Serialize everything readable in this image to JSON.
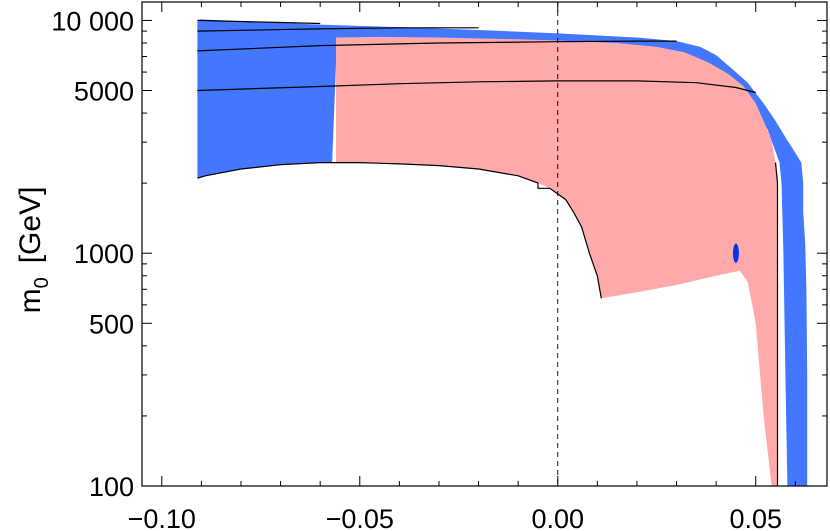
{
  "chart_data": {
    "type": "area",
    "xlabel": "",
    "ylabel_main": "m",
    "ylabel_sub": "0",
    "ylabel_unit": "[GeV]",
    "xscale": "linear",
    "yscale": "log",
    "xlim": [
      -0.105,
      0.068
    ],
    "ylim": [
      100,
      12000
    ],
    "x_ticks": [
      {
        "value": -0.1,
        "label": "−0.10"
      },
      {
        "value": -0.05,
        "label": "−0.05"
      },
      {
        "value": 0.0,
        "label": "0.00"
      },
      {
        "value": 0.05,
        "label": "0.05"
      }
    ],
    "y_ticks": [
      {
        "value": 100,
        "label": "100"
      },
      {
        "value": 500,
        "label": "500"
      },
      {
        "value": 1000,
        "label": "1000"
      },
      {
        "value": 5000,
        "label": "5000"
      },
      {
        "value": 10000,
        "label": "10 000"
      }
    ],
    "y_minor_ticks": [
      200,
      300,
      400,
      600,
      700,
      800,
      900,
      2000,
      3000,
      4000,
      6000,
      7000,
      8000,
      9000
    ],
    "x_minor_step": 0.01,
    "reference_line": {
      "x": 0.0,
      "style": "dashed"
    },
    "regions": [
      {
        "color": "#4477ff",
        "points": [
          [
            -0.091,
            10050
          ],
          [
            -0.09,
            10100
          ],
          [
            -0.08,
            9900
          ],
          [
            -0.06,
            9600
          ],
          [
            -0.04,
            9350
          ],
          [
            -0.02,
            9100
          ],
          [
            0.0,
            8800
          ],
          [
            0.02,
            8450
          ],
          [
            0.03,
            8150
          ],
          [
            0.036,
            7700
          ],
          [
            0.04,
            7100
          ],
          [
            0.044,
            6200
          ],
          [
            0.048,
            5400
          ],
          [
            0.052,
            4400
          ],
          [
            0.055,
            3700
          ],
          [
            0.058,
            3050
          ],
          [
            0.06,
            2700
          ],
          [
            0.0615,
            2450
          ],
          [
            0.062,
            2000
          ],
          [
            0.062,
            1500
          ],
          [
            0.0625,
            1100
          ],
          [
            0.0628,
            700
          ],
          [
            0.063,
            300
          ],
          [
            0.063,
            100
          ],
          [
            0.058,
            100
          ],
          [
            0.0575,
            300
          ],
          [
            0.057,
            1000
          ],
          [
            0.0565,
            2000
          ],
          [
            0.056,
            2450
          ],
          [
            0.053,
            3400
          ],
          [
            0.05,
            4100
          ],
          [
            0.047,
            4700
          ],
          [
            0.043,
            5300
          ],
          [
            0.035,
            5900
          ],
          [
            0.02,
            6200
          ],
          [
            0.0,
            6300
          ],
          [
            -0.02,
            6300
          ],
          [
            -0.04,
            6350
          ],
          [
            -0.05,
            6450
          ],
          [
            -0.056,
            6500
          ],
          [
            -0.057,
            2450
          ],
          [
            -0.06,
            2450
          ],
          [
            -0.07,
            2400
          ],
          [
            -0.08,
            2300
          ],
          [
            -0.089,
            2150
          ],
          [
            -0.091,
            2100
          ]
        ]
      },
      {
        "color": "#ffaaaa",
        "points": [
          [
            -0.056,
            8450
          ],
          [
            -0.045,
            8500
          ],
          [
            -0.03,
            8450
          ],
          [
            -0.01,
            8300
          ],
          [
            0.0,
            8200
          ],
          [
            0.015,
            8000
          ],
          [
            0.025,
            7700
          ],
          [
            0.032,
            7300
          ],
          [
            0.038,
            6600
          ],
          [
            0.043,
            5900
          ],
          [
            0.047,
            5200
          ],
          [
            0.05,
            4400
          ],
          [
            0.052,
            3700
          ],
          [
            0.054,
            3050
          ],
          [
            0.055,
            2450
          ],
          [
            0.0555,
            2000
          ],
          [
            0.0555,
            1000
          ],
          [
            0.0555,
            600
          ],
          [
            0.0555,
            300
          ],
          [
            0.0555,
            100
          ],
          [
            0.054,
            100
          ],
          [
            0.052,
            200
          ],
          [
            0.05,
            500
          ],
          [
            0.048,
            750
          ],
          [
            0.046,
            840
          ],
          [
            0.04,
            800
          ],
          [
            0.03,
            730
          ],
          [
            0.02,
            680
          ],
          [
            0.011,
            640
          ],
          [
            0.01,
            800
          ],
          [
            0.008,
            1000
          ],
          [
            0.006,
            1300
          ],
          [
            0.004,
            1500
          ],
          [
            0.002,
            1700
          ],
          [
            -0.002,
            1900
          ],
          [
            -0.005,
            2000
          ],
          [
            -0.01,
            2150
          ],
          [
            -0.02,
            2300
          ],
          [
            -0.03,
            2380
          ],
          [
            -0.04,
            2420
          ],
          [
            -0.05,
            2450
          ],
          [
            -0.056,
            2450
          ]
        ]
      },
      {
        "color": "#0033ee",
        "ellipse": {
          "cx": 0.045,
          "cy": 1000,
          "rx": 0.00075,
          "ry_factor": 1.1
        }
      }
    ],
    "series": [
      {
        "points": [
          [
            -0.091,
            10000
          ],
          [
            -0.07,
            9800
          ],
          [
            -0.06,
            9700
          ]
        ]
      },
      {
        "points": [
          [
            -0.091,
            9000
          ],
          [
            -0.06,
            9200
          ],
          [
            -0.04,
            9300
          ],
          [
            -0.02,
            9300
          ]
        ]
      },
      {
        "points": [
          [
            -0.091,
            7400
          ],
          [
            -0.06,
            7800
          ],
          [
            -0.03,
            8000
          ],
          [
            0.0,
            8100
          ],
          [
            0.02,
            8150
          ],
          [
            0.03,
            8150
          ]
        ]
      },
      {
        "points": [
          [
            -0.091,
            5000
          ],
          [
            -0.06,
            5200
          ],
          [
            -0.04,
            5350
          ],
          [
            -0.02,
            5450
          ],
          [
            0.0,
            5500
          ],
          [
            0.02,
            5500
          ],
          [
            0.035,
            5400
          ],
          [
            0.045,
            5150
          ],
          [
            0.05,
            4900
          ]
        ]
      },
      {
        "points": [
          [
            -0.091,
            2100
          ],
          [
            -0.089,
            2150
          ],
          [
            -0.08,
            2300
          ],
          [
            -0.07,
            2400
          ],
          [
            -0.06,
            2450
          ],
          [
            -0.05,
            2450
          ],
          [
            -0.04,
            2420
          ],
          [
            -0.03,
            2380
          ],
          [
            -0.02,
            2300
          ],
          [
            -0.01,
            2150
          ],
          [
            -0.005,
            2000
          ],
          [
            -0.005,
            1900
          ],
          [
            -0.002,
            1900
          ],
          [
            0.002,
            1700
          ],
          [
            0.004,
            1500
          ],
          [
            0.006,
            1300
          ],
          [
            0.008,
            1000
          ],
          [
            0.01,
            800
          ],
          [
            0.011,
            640
          ]
        ]
      },
      {
        "points": [
          [
            0.0555,
            100
          ],
          [
            0.0555,
            300
          ],
          [
            0.0555,
            600
          ],
          [
            0.0555,
            1000
          ],
          [
            0.0555,
            2000
          ],
          [
            0.055,
            2450
          ]
        ]
      }
    ],
    "grid": false,
    "legend": "none"
  }
}
